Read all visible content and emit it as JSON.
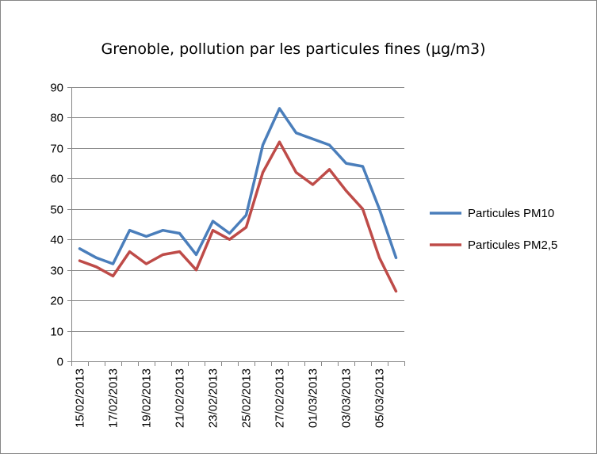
{
  "chart_data": {
    "type": "line",
    "title": "Grenoble, pollution par les particules fines (µg/m3)",
    "categories": [
      "15/02/2013",
      "16/02/2013",
      "17/02/2013",
      "18/02/2013",
      "19/02/2013",
      "20/02/2013",
      "21/02/2013",
      "22/02/2013",
      "23/02/2013",
      "24/02/2013",
      "25/02/2013",
      "26/02/2013",
      "27/02/2013",
      "28/02/2013",
      "01/03/2013",
      "02/03/2013",
      "03/03/2013",
      "04/03/2013",
      "05/03/2013",
      "06/03/2013"
    ],
    "x_tick_labels": [
      "15/02/2013",
      "17/02/2013",
      "19/02/2013",
      "21/02/2013",
      "23/02/2013",
      "25/02/2013",
      "27/02/2013",
      "01/03/2013",
      "03/03/2013",
      "05/03/2013"
    ],
    "y_tick_labels": [
      "0",
      "10",
      "20",
      "30",
      "40",
      "50",
      "60",
      "70",
      "80",
      "90"
    ],
    "ylim": [
      0,
      90
    ],
    "y_step": 10,
    "grid": "horizontal",
    "legend_position": "right",
    "series": [
      {
        "name": "Particules PM10",
        "color": "#4a7ebb",
        "values": [
          37,
          34,
          32,
          43,
          41,
          43,
          42,
          35,
          46,
          42,
          48,
          71,
          83,
          75,
          73,
          71,
          65,
          64,
          50,
          34
        ]
      },
      {
        "name": "Particules PM2,5",
        "color": "#be4b48",
        "values": [
          33,
          31,
          28,
          36,
          32,
          35,
          36,
          30,
          43,
          40,
          44,
          62,
          72,
          62,
          58,
          63,
          56,
          50,
          34,
          23
        ]
      }
    ]
  }
}
